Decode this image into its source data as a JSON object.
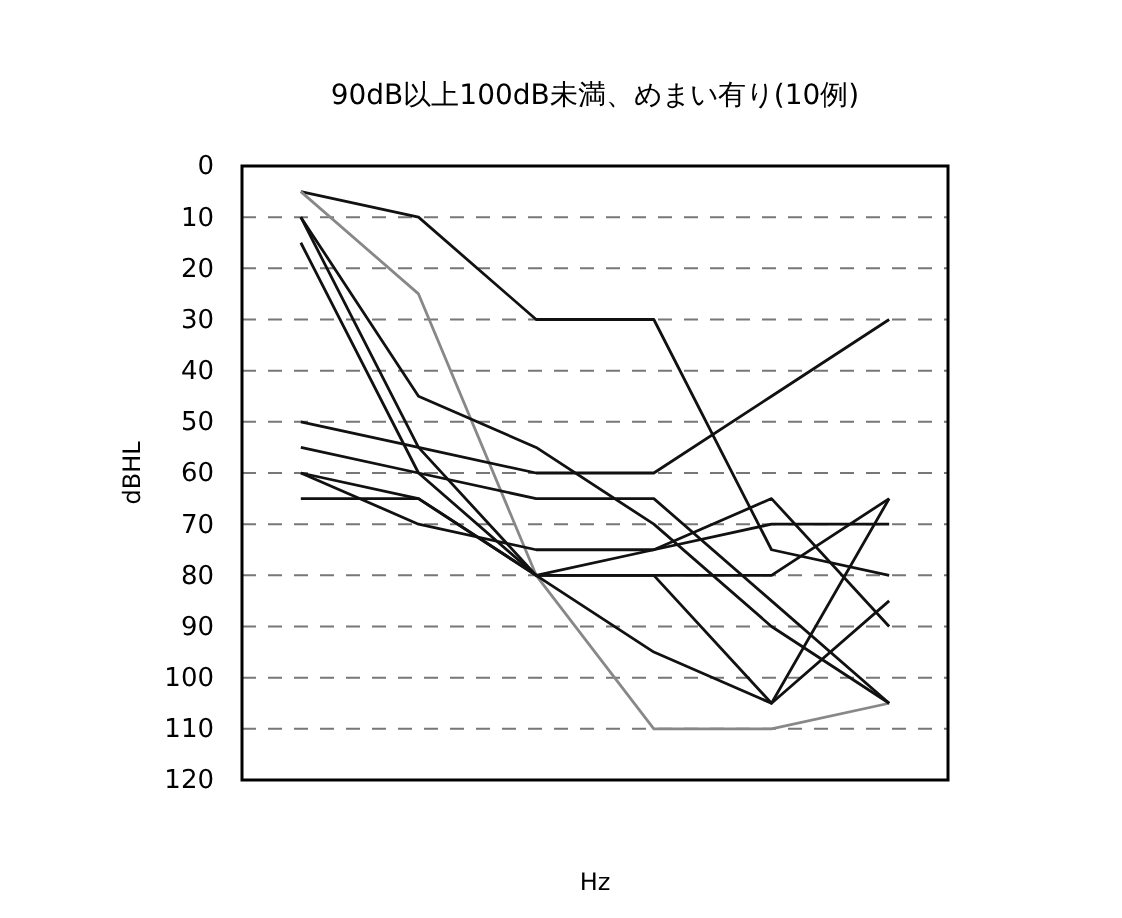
{
  "chart_data": {
    "type": "line",
    "title": "90dB以上100dB未満、めまい有り(10例)",
    "xlabel": "Hz",
    "ylabel": "dBHL",
    "categories": [
      null,
      null,
      null,
      null,
      null,
      null
    ],
    "ylim": [
      120,
      0
    ],
    "yticks": [
      0,
      10,
      20,
      30,
      40,
      50,
      60,
      70,
      80,
      90,
      100,
      110,
      120
    ],
    "grid": "y",
    "marker": "none",
    "line_style": "solid",
    "series": [
      {
        "color": "#111111",
        "values": [
          5,
          10,
          30,
          30,
          75,
          80
        ]
      },
      {
        "color": "#888888",
        "values": [
          5,
          25,
          80,
          110,
          110,
          105
        ]
      },
      {
        "color": "#111111",
        "values": [
          10,
          45,
          55,
          70,
          90,
          105
        ]
      },
      {
        "color": "#111111",
        "values": [
          10,
          55,
          80,
          95,
          105,
          65
        ]
      },
      {
        "color": "#111111",
        "values": [
          15,
          60,
          80,
          80,
          105,
          85
        ]
      },
      {
        "color": "#111111",
        "values": [
          50,
          55,
          60,
          60,
          45,
          30
        ]
      },
      {
        "color": "#111111",
        "values": [
          55,
          60,
          65,
          65,
          85,
          105
        ]
      },
      {
        "color": "#111111",
        "values": [
          60,
          70,
          75,
          75,
          70,
          70
        ]
      },
      {
        "color": "#111111",
        "values": [
          65,
          65,
          80,
          75,
          65,
          90
        ]
      },
      {
        "color": "#111111",
        "values": [
          60,
          65,
          80,
          80,
          80,
          65
        ]
      }
    ]
  }
}
